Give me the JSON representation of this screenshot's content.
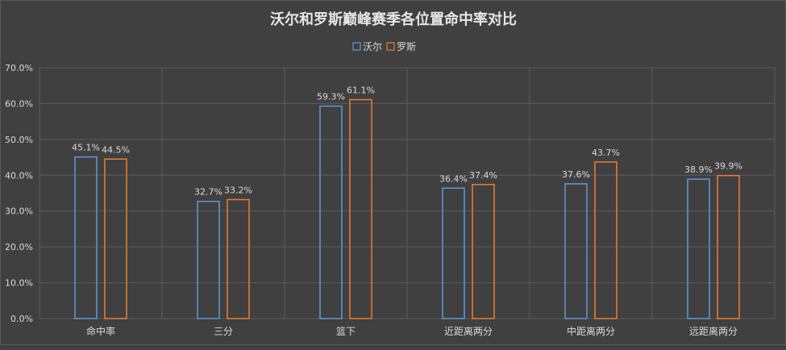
{
  "chart_data": {
    "type": "bar",
    "title": "沃尔和罗斯巅峰赛季各位置命中率对比",
    "categories": [
      "命中率",
      "三分",
      "篮下",
      "近距离两分",
      "中距离两分",
      "远距离两分"
    ],
    "series": [
      {
        "name": "沃尔",
        "values": [
          45.1,
          32.7,
          59.3,
          36.4,
          37.6,
          38.9
        ],
        "labels": [
          "45.1%",
          "32.7%",
          "59.3%",
          "36.4%",
          "37.6%",
          "38.9%"
        ],
        "color": "#5b9bd5"
      },
      {
        "name": "罗斯",
        "values": [
          44.5,
          33.2,
          61.1,
          37.4,
          43.7,
          39.9
        ],
        "labels": [
          "44.5%",
          "33.2%",
          "61.1%",
          "37.4%",
          "43.7%",
          "39.9%"
        ],
        "color": "#ed7d31"
      }
    ],
    "ylim": [
      0,
      70
    ],
    "yticks": [
      "0.0%",
      "10.0%",
      "20.0%",
      "30.0%",
      "40.0%",
      "50.0%",
      "60.0%",
      "70.0%"
    ],
    "grid": true,
    "legend": "top-center"
  }
}
